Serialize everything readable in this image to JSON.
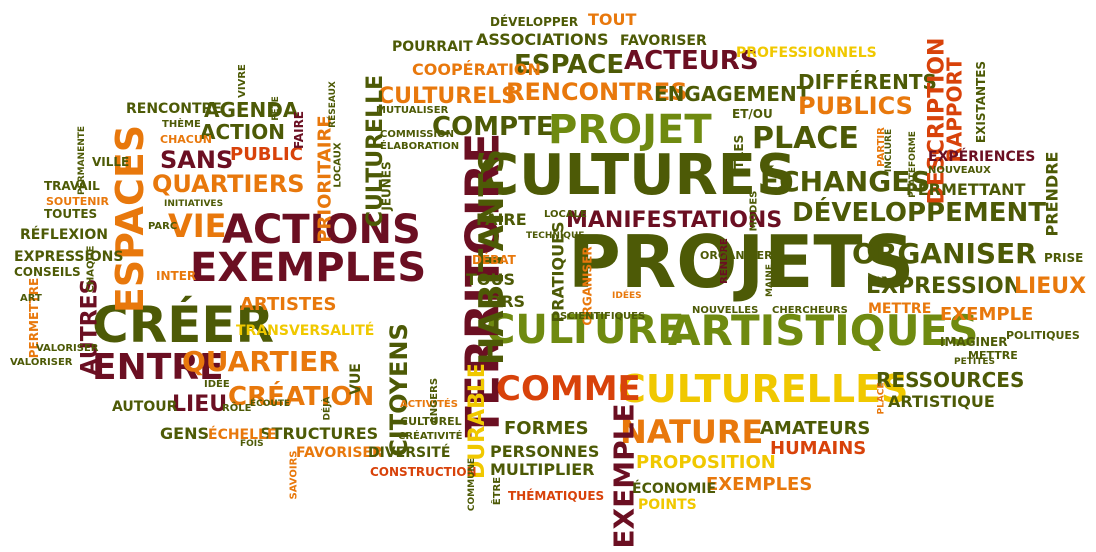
{
  "colors": {
    "olive": "#4d5a06",
    "orange": "#e8780c",
    "maroon": "#6b0f22",
    "yellow": "#f0c800",
    "red": "#d8420a",
    "green": "#6f8a10"
  },
  "words": [
    {
      "text": "PROJETS",
      "color": "olive"
    },
    {
      "text": "CULTURES",
      "color": "olive"
    },
    {
      "text": "CULTURE",
      "color": "green"
    },
    {
      "text": "ARTISTIQUES",
      "color": "green"
    },
    {
      "text": "CULTURELLES",
      "color": "yellow"
    },
    {
      "text": "TERRITOIRE",
      "color": "maroon"
    },
    {
      "text": "PROJET",
      "color": "green"
    },
    {
      "text": "ACTIONS",
      "color": "maroon"
    },
    {
      "text": "EXEMPLES",
      "color": "maroon"
    },
    {
      "text": "CRÉER",
      "color": "olive"
    },
    {
      "text": "ESPACES",
      "color": "orange"
    },
    {
      "text": "ENTRE",
      "color": "maroon"
    },
    {
      "text": "QUARTIER",
      "color": "orange"
    },
    {
      "text": "CRÉATION",
      "color": "orange"
    },
    {
      "text": "COMME",
      "color": "red"
    },
    {
      "text": "NATURE",
      "color": "orange"
    },
    {
      "text": "EXEMPLE",
      "color": "maroon"
    },
    {
      "text": "HABITANTS",
      "color": "olive"
    },
    {
      "text": "DÉVELOPPEMENT",
      "color": "olive"
    },
    {
      "text": "ORGANISER",
      "color": "olive"
    },
    {
      "text": "EXPRESSION",
      "color": "olive"
    },
    {
      "text": "MANIFESTATIONS",
      "color": "maroon"
    },
    {
      "text": "ÉCHANGES",
      "color": "olive"
    },
    {
      "text": "PLACE",
      "color": "olive"
    },
    {
      "text": "COMPTE",
      "color": "olive"
    },
    {
      "text": "ESPACE",
      "color": "olive"
    },
    {
      "text": "ACTEURS",
      "color": "maroon"
    },
    {
      "text": "RENCONTRES",
      "color": "orange"
    },
    {
      "text": "ENGAGEMENT",
      "color": "olive"
    },
    {
      "text": "CULTURELS",
      "color": "orange"
    },
    {
      "text": "PUBLICS",
      "color": "orange"
    },
    {
      "text": "DIFFÉRENTS",
      "color": "olive"
    },
    {
      "text": "DESCRIPTION",
      "color": "red"
    },
    {
      "text": "RAPPORT",
      "color": "red"
    },
    {
      "text": "CULTURELLE",
      "color": "olive"
    },
    {
      "text": "CITOYENS",
      "color": "olive"
    },
    {
      "text": "DURABLE",
      "color": "yellow"
    },
    {
      "text": "QUARTIERS",
      "color": "orange"
    },
    {
      "text": "SANS",
      "color": "maroon"
    },
    {
      "text": "VIE",
      "color": "orange"
    },
    {
      "text": "AGENDA",
      "color": "olive"
    },
    {
      "text": "ACTION",
      "color": "olive"
    },
    {
      "text": "PUBLIC",
      "color": "red"
    },
    {
      "text": "PRIORITAIRE",
      "color": "orange"
    },
    {
      "text": "ARTISTES",
      "color": "orange"
    },
    {
      "text": "AUTRES",
      "color": "maroon"
    },
    {
      "text": "LIEU",
      "color": "maroon"
    },
    {
      "text": "LIEUX",
      "color": "orange"
    },
    {
      "text": "RESSOURCES",
      "color": "olive"
    },
    {
      "text": "ARTISTIQUE",
      "color": "olive"
    },
    {
      "text": "AMATEURS",
      "color": "olive"
    },
    {
      "text": "HUMAINS",
      "color": "red"
    },
    {
      "text": "FORMES",
      "color": "olive"
    },
    {
      "text": "PERSONNES",
      "color": "olive"
    },
    {
      "text": "MULTIPLIER",
      "color": "olive"
    },
    {
      "text": "PROPOSITION",
      "color": "yellow"
    },
    {
      "text": "EXEMPLES",
      "color": "orange"
    },
    {
      "text": "ÉCONOMIE",
      "color": "olive"
    },
    {
      "text": "POINTS",
      "color": "yellow"
    },
    {
      "text": "THÉMATIQUES",
      "color": "red"
    },
    {
      "text": "STRUCTURES",
      "color": "olive"
    },
    {
      "text": "GENS",
      "color": "olive"
    },
    {
      "text": "ÉCHELLE",
      "color": "orange"
    },
    {
      "text": "FAVORISER",
      "color": "orange"
    },
    {
      "text": "DIVERSITÉ",
      "color": "olive"
    },
    {
      "text": "CONSTRUCTION",
      "color": "red"
    },
    {
      "text": "AUTOUR",
      "color": "olive"
    },
    {
      "text": "TRANSVERSALITÉ",
      "color": "yellow"
    },
    {
      "text": "VUE",
      "color": "olive"
    },
    {
      "text": "POURRAIT",
      "color": "olive"
    },
    {
      "text": "ASSOCIATIONS",
      "color": "olive"
    },
    {
      "text": "FAVORISER",
      "color": "olive"
    },
    {
      "text": "COOPÉRATION",
      "color": "orange"
    },
    {
      "text": "DÉVELOPPER",
      "color": "olive"
    },
    {
      "text": "TOUT",
      "color": "orange"
    },
    {
      "text": "PROFESSIONNELS",
      "color": "yellow"
    },
    {
      "text": "PRATIQUES",
      "color": "olive"
    },
    {
      "text": "FAIRE",
      "color": "olive"
    },
    {
      "text": "TOUS",
      "color": "olive"
    },
    {
      "text": "LORS",
      "color": "olive"
    },
    {
      "text": "DÉBAT",
      "color": "orange"
    },
    {
      "text": "ORGANISER",
      "color": "orange"
    },
    {
      "text": "RENCONTRE",
      "color": "olive"
    },
    {
      "text": "RÉFLEXION",
      "color": "olive"
    },
    {
      "text": "EXPRESSIONS",
      "color": "olive"
    },
    {
      "text": "CONSEILS",
      "color": "olive"
    },
    {
      "text": "VALORISER",
      "color": "olive"
    },
    {
      "text": "PERMETTRE",
      "color": "orange"
    },
    {
      "text": "INTER",
      "color": "orange"
    },
    {
      "text": "TOUTES",
      "color": "olive"
    },
    {
      "text": "TRAVAIL",
      "color": "olive"
    },
    {
      "text": "VILLE",
      "color": "olive"
    },
    {
      "text": "SOUTENIR",
      "color": "orange"
    },
    {
      "text": "PERMETTANT",
      "color": "olive"
    },
    {
      "text": "EXPÉRIENCES",
      "color": "maroon"
    },
    {
      "text": "PRENDRE",
      "color": "olive"
    },
    {
      "text": "EXISTANTES",
      "color": "olive"
    },
    {
      "text": "METTRE",
      "color": "orange"
    },
    {
      "text": "EXEMPLE",
      "color": "orange"
    },
    {
      "text": "IMAGINER",
      "color": "olive"
    },
    {
      "text": "POLITIQUES",
      "color": "olive"
    },
    {
      "text": "METTRE",
      "color": "olive"
    },
    {
      "text": "PRISE",
      "color": "olive"
    },
    {
      "text": "SCIENTIFIQUES",
      "color": "olive"
    },
    {
      "text": "CHERCHEURS",
      "color": "olive"
    },
    {
      "text": "JEUNES",
      "color": "olive"
    },
    {
      "text": "LOCAUX",
      "color": "olive"
    },
    {
      "text": "FAIRE",
      "color": "maroon"
    },
    {
      "text": "CHACUN",
      "color": "orange"
    },
    {
      "text": "THÈME",
      "color": "olive"
    },
    {
      "text": "VIVRE",
      "color": "olive"
    },
    {
      "text": "ÊTRES",
      "color": "olive"
    },
    {
      "text": "ET/OU",
      "color": "olive"
    },
    {
      "text": "RÔLE",
      "color": "olive"
    },
    {
      "text": "ACTIVITÉS",
      "color": "orange"
    },
    {
      "text": "CULTUREL",
      "color": "olive"
    },
    {
      "text": "CRÉATIVITÉ",
      "color": "olive"
    },
    {
      "text": "ANGERS",
      "color": "olive"
    },
    {
      "text": "IDÉE",
      "color": "olive"
    },
    {
      "text": "SAVOIRS",
      "color": "orange"
    },
    {
      "text": "NOUVELLES",
      "color": "olive"
    },
    {
      "text": "RENDRE",
      "color": "maroon"
    },
    {
      "text": "MODES",
      "color": "olive"
    },
    {
      "text": "COMMISSION",
      "color": "olive"
    },
    {
      "text": "ÉLABORATION",
      "color": "olive"
    },
    {
      "text": "MUTUALISER",
      "color": "olive"
    },
    {
      "text": "PARC",
      "color": "olive"
    },
    {
      "text": "ART",
      "color": "olive"
    },
    {
      "text": "CHAQUE",
      "color": "olive"
    },
    {
      "text": "INITIATIVES",
      "color": "olive"
    },
    {
      "text": "RÉSEAUX",
      "color": "olive"
    },
    {
      "text": "PLATEFORME",
      "color": "olive"
    },
    {
      "text": "INCLURE",
      "color": "olive"
    },
    {
      "text": "PARTIR",
      "color": "orange"
    },
    {
      "text": "NOUVEAUX",
      "color": "olive"
    },
    {
      "text": "PETITES",
      "color": "olive"
    },
    {
      "text": "PLACE",
      "color": "orange"
    },
    {
      "text": "ORGANISER",
      "color": "olive"
    },
    {
      "text": "LOCALE",
      "color": "olive"
    },
    {
      "text": "TECHNIQUE",
      "color": "olive"
    },
    {
      "text": "IDÉES",
      "color": "orange"
    },
    {
      "text": "MAINE",
      "color": "olive"
    },
    {
      "text": "COMMUNE",
      "color": "olive"
    },
    {
      "text": "ÊTRE",
      "color": "olive"
    },
    {
      "text": "ÉCOUTE",
      "color": "olive"
    },
    {
      "text": "DÉJÀ",
      "color": "olive"
    },
    {
      "text": "FOIS",
      "color": "olive"
    },
    {
      "text": "PERMANENTE",
      "color": "olive"
    },
    {
      "text": "FÊTE",
      "color": "olive"
    },
    {
      "text": "VALORISER",
      "color": "olive"
    }
  ]
}
